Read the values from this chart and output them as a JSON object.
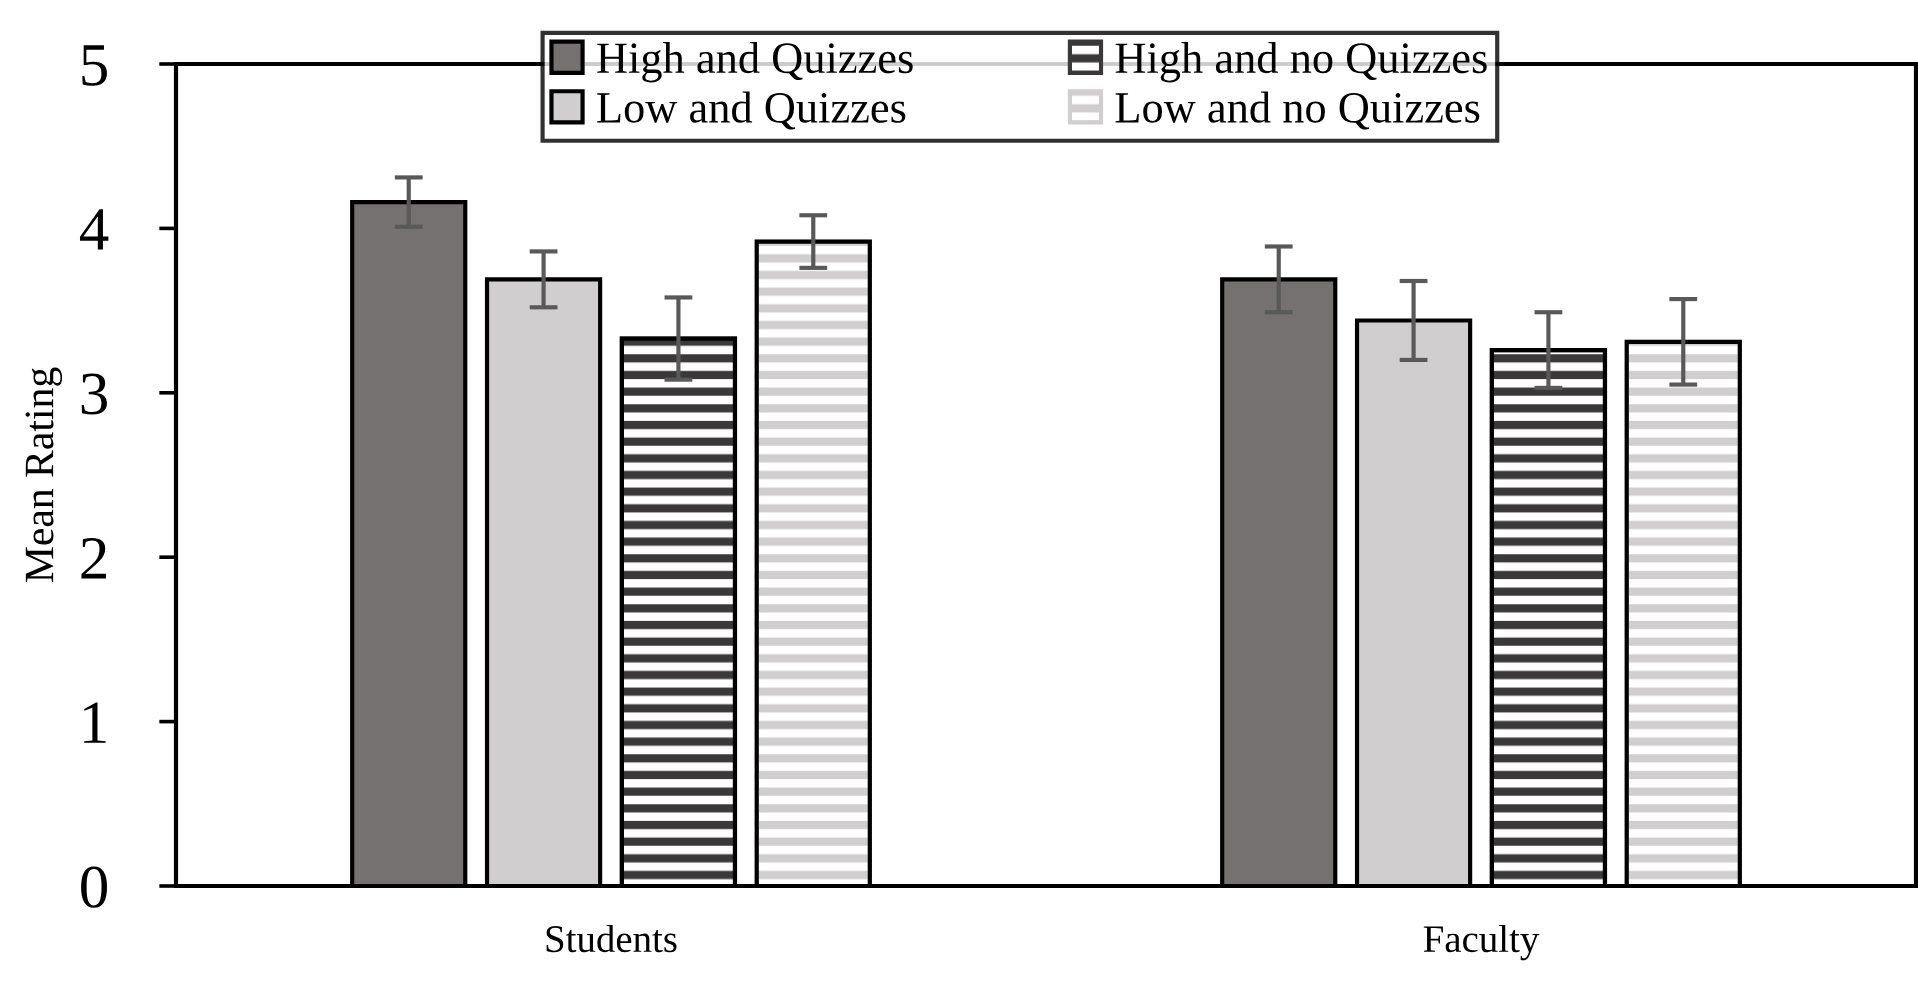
{
  "chart_data": {
    "type": "bar",
    "ylabel": "Mean Rating",
    "categories": [
      "Students",
      "Faculty"
    ],
    "series": [
      {
        "name": "High and Quizzes",
        "color": "#757171",
        "values": [
          4.16,
          3.69
        ],
        "errors": [
          0.15,
          0.2
        ]
      },
      {
        "name": "Low and Quizzes",
        "color": "#d0cece",
        "values": [
          3.69,
          3.44
        ],
        "errors": [
          0.17,
          0.24
        ]
      },
      {
        "name": "High and no Quizzes",
        "color": "#3a3838",
        "values": [
          3.33,
          3.26
        ],
        "errors": [
          0.25,
          0.23
        ]
      },
      {
        "name": "Low and no Quizzes",
        "color": "#d0cece",
        "values": [
          3.92,
          3.31
        ],
        "errors": [
          0.16,
          0.26
        ]
      }
    ],
    "ylim": [
      0,
      5
    ],
    "yticks": [
      0,
      1,
      2,
      3,
      4,
      5
    ],
    "grid": false,
    "legend": "top"
  }
}
